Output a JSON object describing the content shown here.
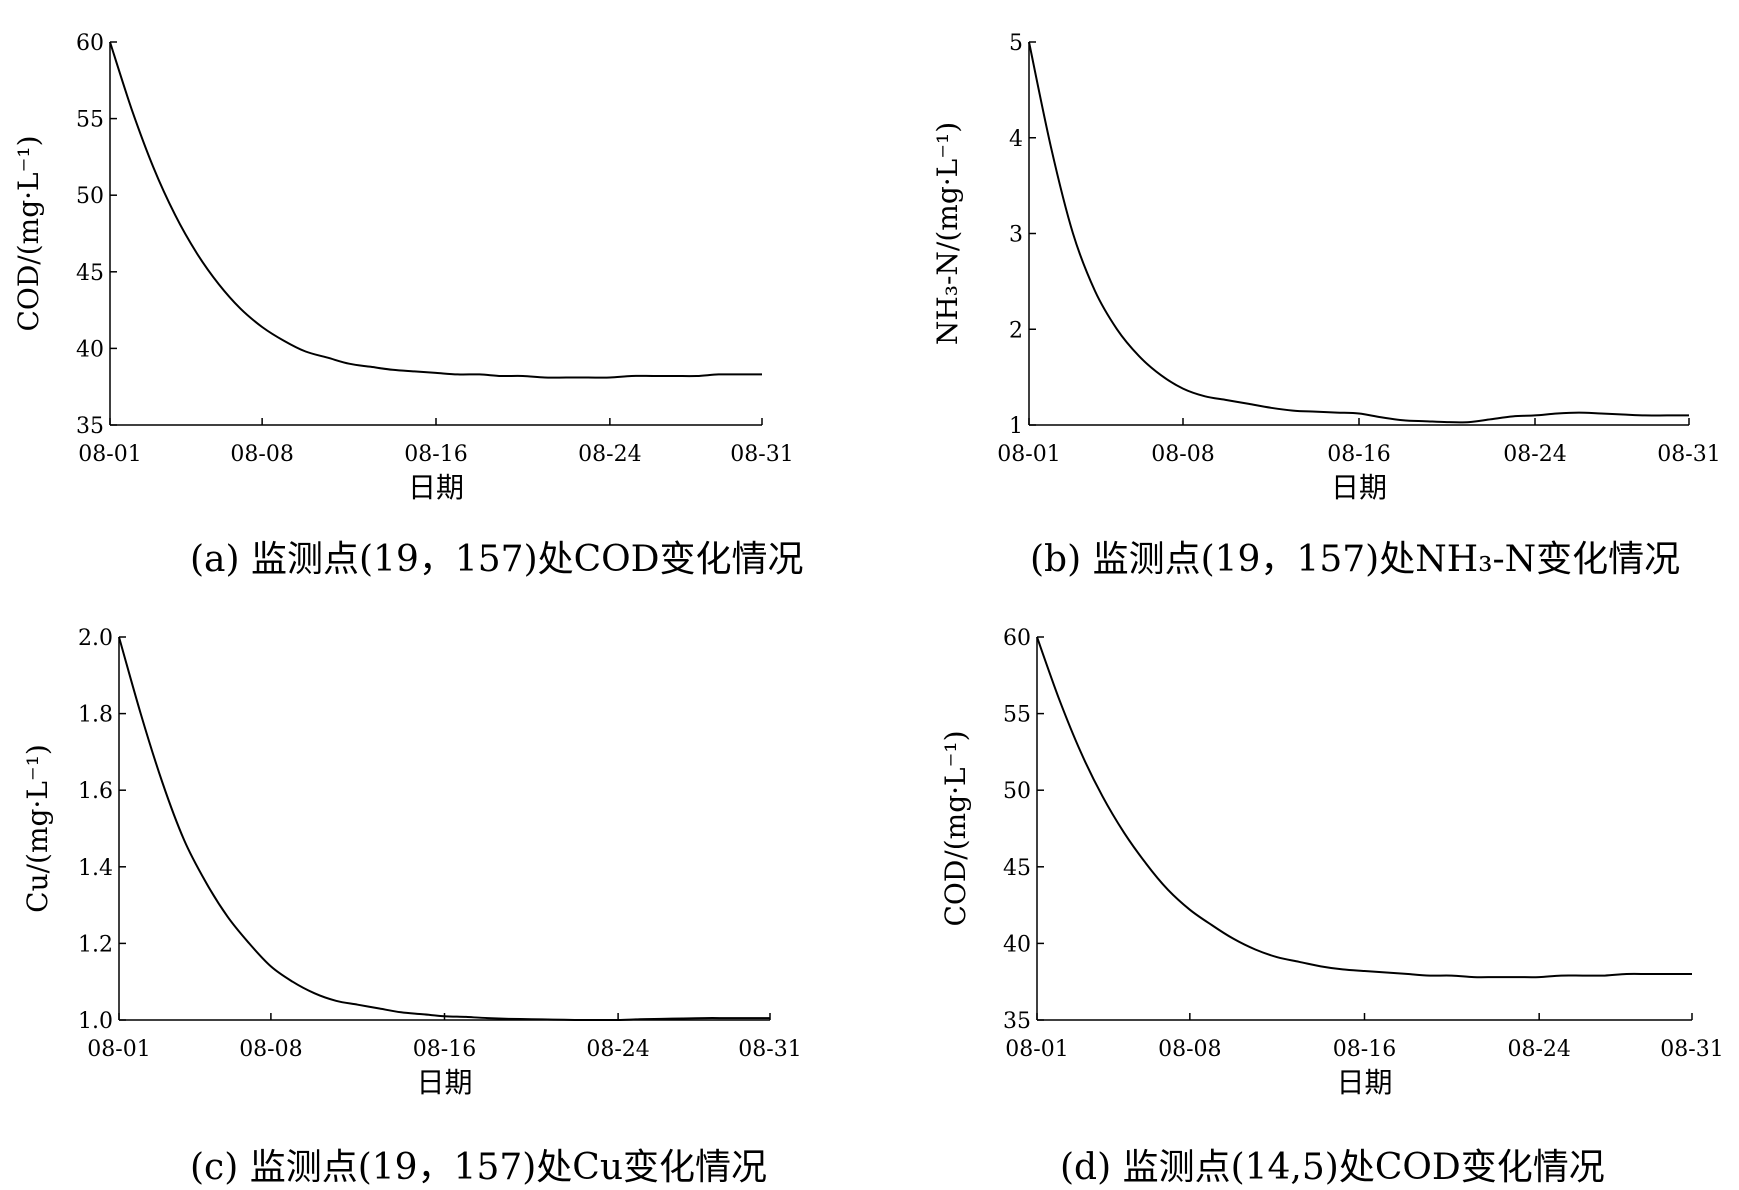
{
  "chart_data": [
    {
      "type": "line",
      "panel": "a",
      "xlabel": "日期",
      "ylabel": "COD/(mg·L⁻¹)",
      "x_ticks": [
        "08-01",
        "08-08",
        "08-16",
        "08-24",
        "08-31"
      ],
      "x_range": [
        1,
        31
      ],
      "ylim": [
        35,
        60
      ],
      "y_ticks": [
        "35",
        "40",
        "45",
        "50",
        "55",
        "60"
      ],
      "grid": false,
      "series": [
        {
          "x": [
            1,
            2,
            3,
            4,
            5,
            6,
            7,
            8,
            9,
            10,
            11,
            12,
            13,
            14,
            15,
            16,
            17,
            18,
            19,
            20,
            21,
            22,
            23,
            24,
            25,
            26,
            27,
            28,
            29,
            30,
            31
          ],
          "values": [
            60.0,
            55.6,
            51.8,
            48.7,
            46.2,
            44.2,
            42.6,
            41.4,
            40.5,
            39.8,
            39.4,
            39.0,
            38.8,
            38.6,
            38.5,
            38.4,
            38.3,
            38.3,
            38.2,
            38.2,
            38.1,
            38.1,
            38.1,
            38.1,
            38.2,
            38.2,
            38.2,
            38.2,
            38.3,
            38.3,
            38.3
          ]
        }
      ],
      "caption": "(a) 监测点(19，157)处COD变化情况"
    },
    {
      "type": "line",
      "panel": "b",
      "xlabel": "日期",
      "ylabel": "NH₃-N/(mg·L⁻¹)",
      "x_ticks": [
        "08-01",
        "08-08",
        "08-16",
        "08-24",
        "08-31"
      ],
      "x_range": [
        1,
        31
      ],
      "ylim": [
        1,
        5
      ],
      "y_ticks": [
        "1",
        "2",
        "3",
        "4",
        "5"
      ],
      "grid": false,
      "series": [
        {
          "x": [
            1,
            2,
            3,
            4,
            5,
            6,
            7,
            8,
            9,
            10,
            11,
            12,
            13,
            14,
            15,
            16,
            17,
            18,
            19,
            20,
            21,
            22,
            23,
            24,
            25,
            26,
            27,
            28,
            29,
            30,
            31
          ],
          "values": [
            5.0,
            3.9,
            3.0,
            2.4,
            2.0,
            1.72,
            1.52,
            1.38,
            1.3,
            1.26,
            1.22,
            1.18,
            1.15,
            1.14,
            1.13,
            1.12,
            1.08,
            1.05,
            1.04,
            1.03,
            1.03,
            1.06,
            1.09,
            1.1,
            1.12,
            1.13,
            1.12,
            1.11,
            1.1,
            1.1,
            1.1
          ]
        }
      ],
      "caption": "(b) 监测点(19，157)处NH₃-N变化情况"
    },
    {
      "type": "line",
      "panel": "c",
      "xlabel": "日期",
      "ylabel": "Cu/(mg·L⁻¹)",
      "x_ticks": [
        "08-01",
        "08-08",
        "08-16",
        "08-24",
        "08-31"
      ],
      "x_range": [
        1,
        31
      ],
      "ylim": [
        1.0,
        2.0
      ],
      "y_ticks": [
        "1.0",
        "1.2",
        "1.4",
        "1.6",
        "1.8",
        "2.0"
      ],
      "grid": false,
      "series": [
        {
          "x": [
            1,
            2,
            3,
            4,
            5,
            6,
            7,
            8,
            9,
            10,
            11,
            12,
            13,
            14,
            15,
            16,
            17,
            18,
            19,
            20,
            21,
            22,
            23,
            24,
            25,
            26,
            27,
            28,
            29,
            30,
            31
          ],
          "values": [
            2.0,
            1.8,
            1.62,
            1.47,
            1.36,
            1.27,
            1.2,
            1.14,
            1.1,
            1.07,
            1.05,
            1.04,
            1.03,
            1.02,
            1.015,
            1.01,
            1.008,
            1.005,
            1.003,
            1.002,
            1.001,
            1.0,
            1.0,
            1.0,
            1.002,
            1.003,
            1.004,
            1.005,
            1.005,
            1.005,
            1.005
          ]
        }
      ],
      "caption": "(c) 监测点(19，157)处Cu变化情况"
    },
    {
      "type": "line",
      "panel": "d",
      "xlabel": "日期",
      "ylabel": "COD/(mg·L⁻¹)",
      "x_ticks": [
        "08-01",
        "08-08",
        "08-16",
        "08-24",
        "08-31"
      ],
      "x_range": [
        1,
        31
      ],
      "ylim": [
        35,
        60
      ],
      "y_ticks": [
        "35",
        "40",
        "45",
        "50",
        "55",
        "60"
      ],
      "grid": false,
      "series": [
        {
          "x": [
            1,
            2,
            3,
            4,
            5,
            6,
            7,
            8,
            9,
            10,
            11,
            12,
            13,
            14,
            15,
            16,
            17,
            18,
            19,
            20,
            21,
            22,
            23,
            24,
            25,
            26,
            27,
            28,
            29,
            30,
            31
          ],
          "values": [
            60.0,
            56.0,
            52.5,
            49.6,
            47.2,
            45.2,
            43.5,
            42.2,
            41.2,
            40.3,
            39.6,
            39.1,
            38.8,
            38.5,
            38.3,
            38.2,
            38.1,
            38.0,
            37.9,
            37.9,
            37.8,
            37.8,
            37.8,
            37.8,
            37.9,
            37.9,
            37.9,
            38.0,
            38.0,
            38.0,
            38.0
          ]
        }
      ],
      "caption": "(d) 监测点(14,5)处COD变化情况"
    }
  ]
}
